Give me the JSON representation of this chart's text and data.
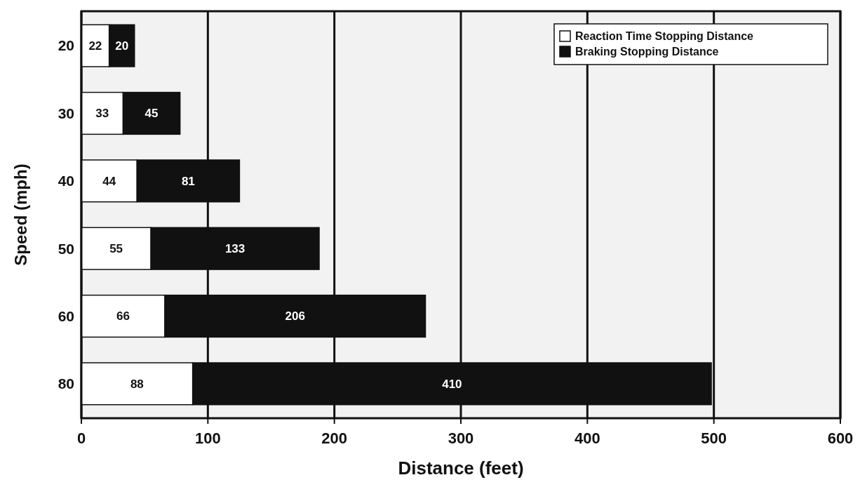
{
  "chart_data": {
    "type": "bar",
    "orientation": "horizontal",
    "stacked": true,
    "xlabel": "Distance (feet)",
    "ylabel": "Speed (mph)",
    "categories": [
      "20",
      "30",
      "40",
      "50",
      "60",
      "80"
    ],
    "series": [
      {
        "name": "Reaction Time Stopping Distance",
        "color": "#ffffff",
        "values": [
          22,
          33,
          44,
          55,
          66,
          88
        ]
      },
      {
        "name": "Braking Stopping Distance",
        "color": "#111111",
        "values": [
          20,
          45,
          81,
          133,
          206,
          410
        ]
      }
    ],
    "xlim": [
      0,
      600
    ],
    "xticks": [
      0,
      100,
      200,
      300,
      400,
      500,
      600
    ],
    "grid": "x",
    "legend": "top right",
    "data_labels": true
  }
}
